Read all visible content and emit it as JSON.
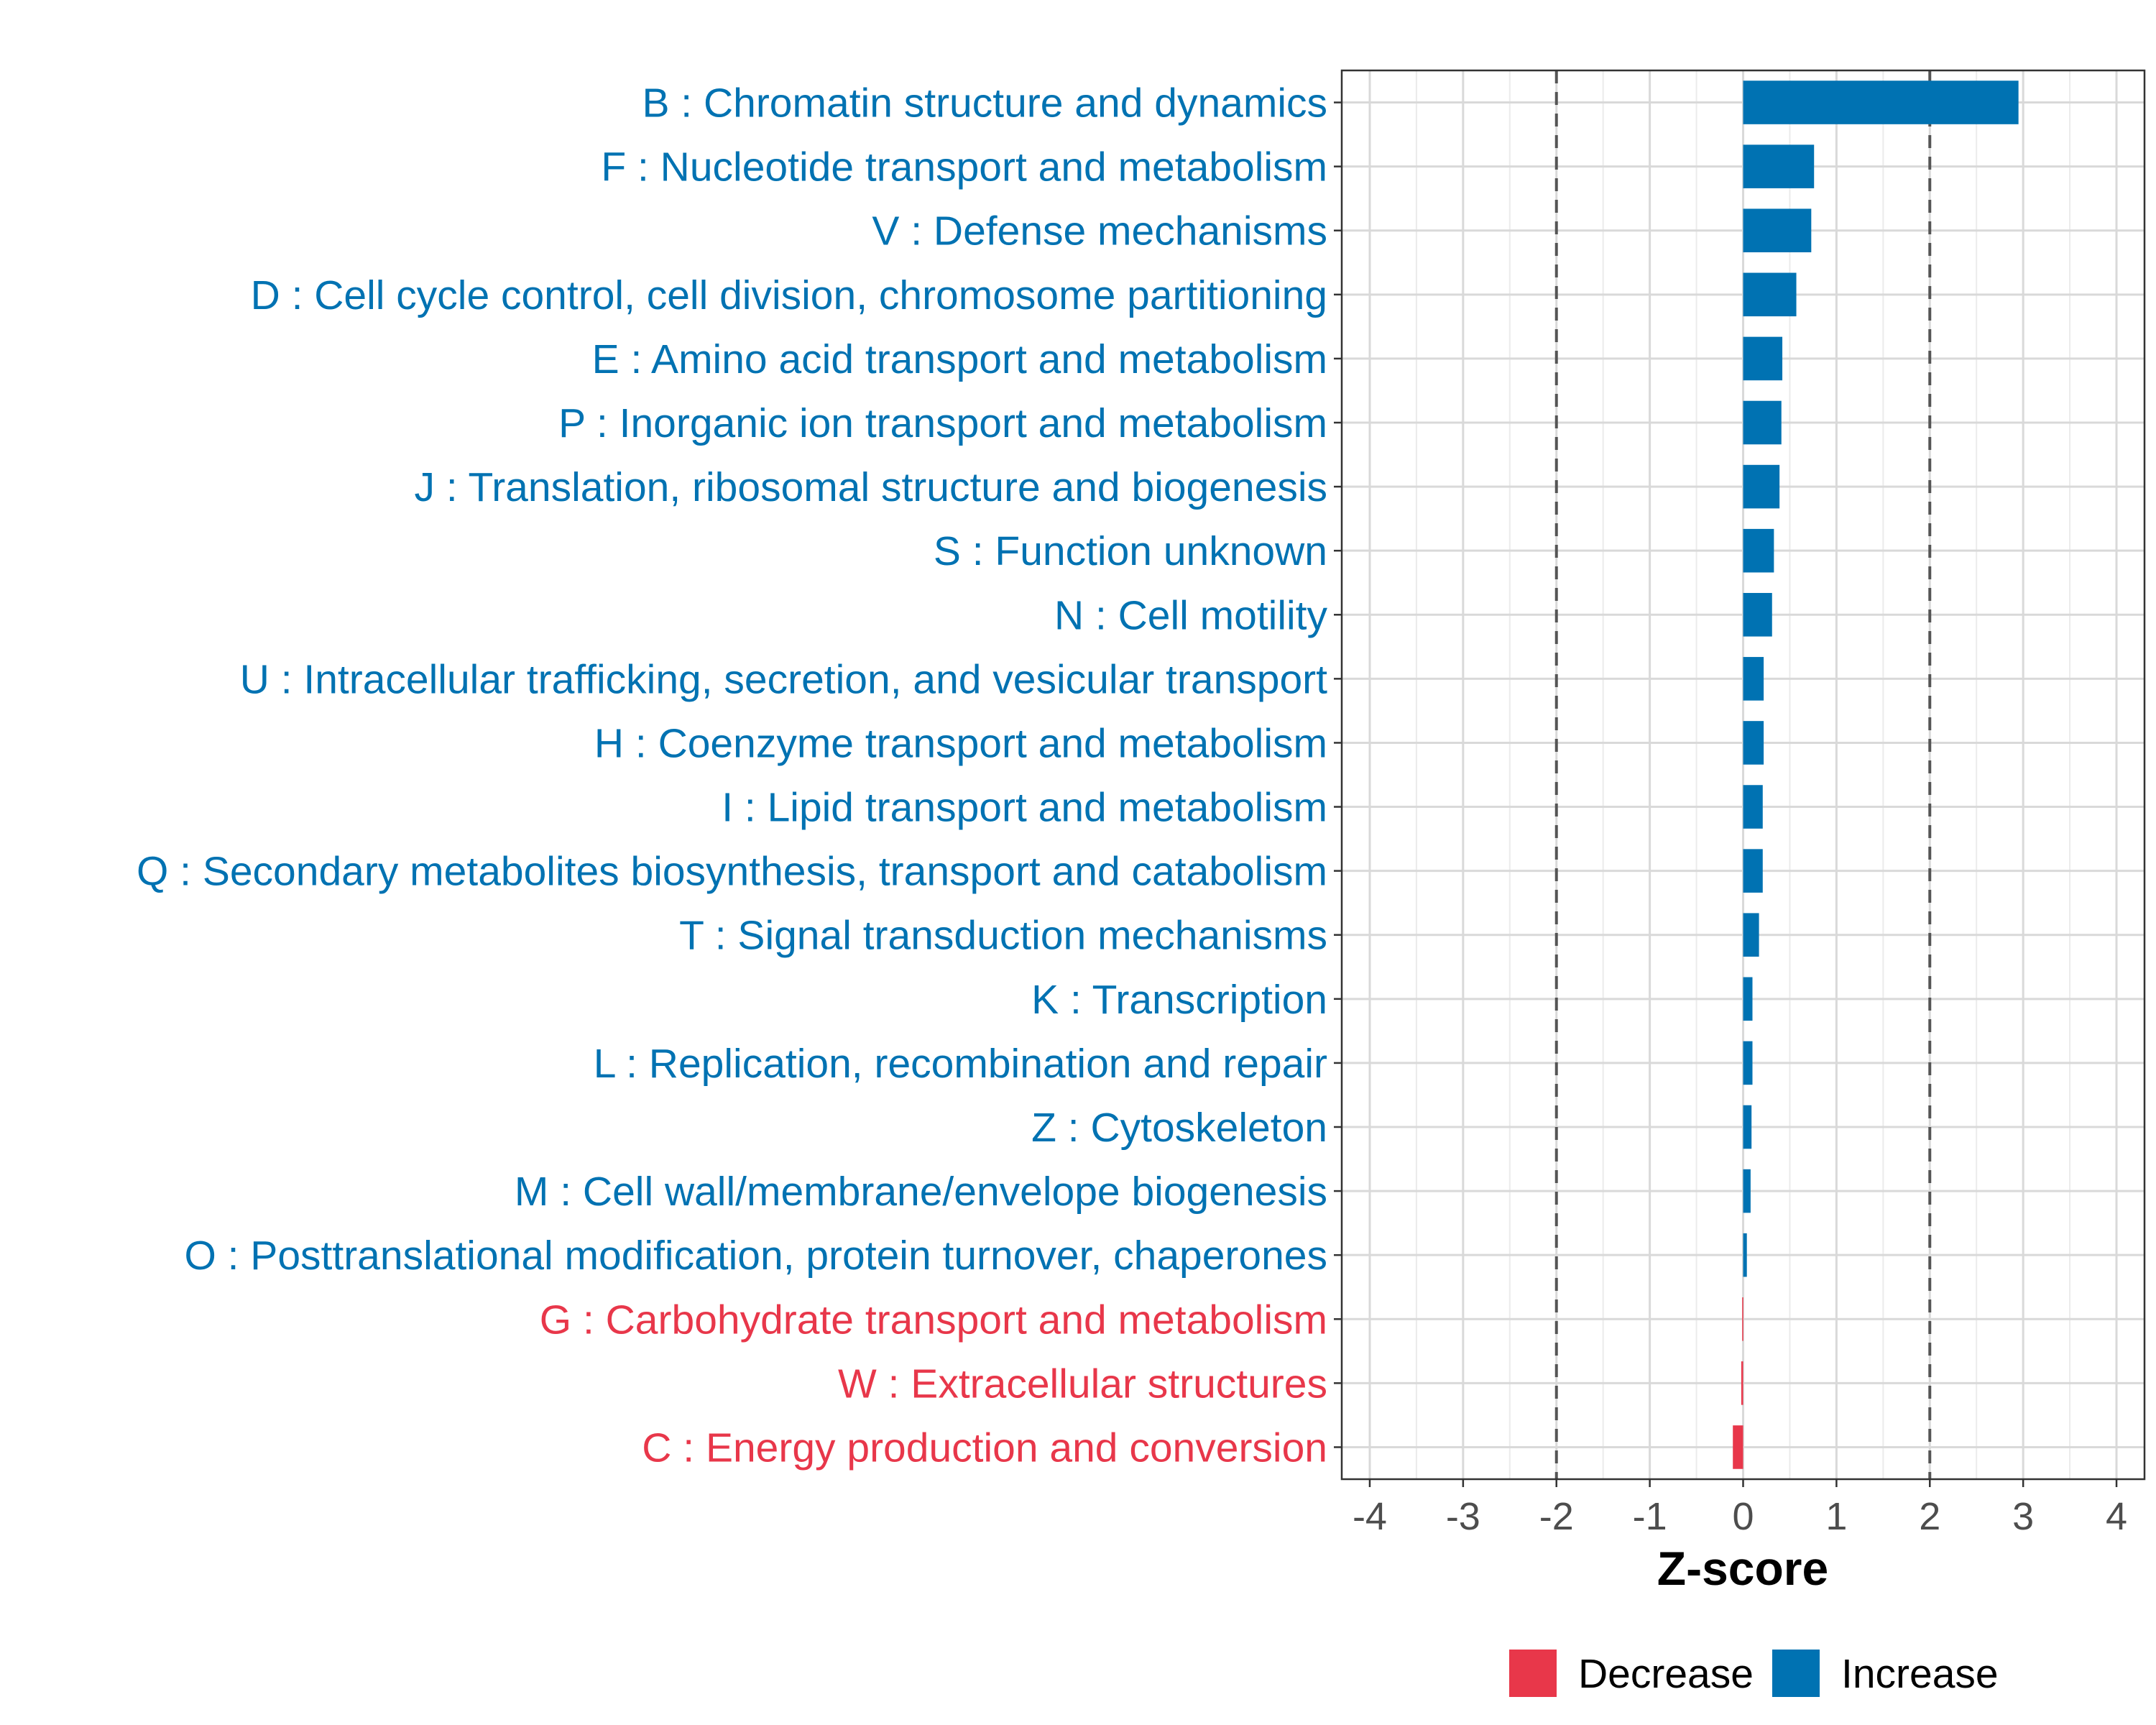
{
  "chart_data": {
    "type": "bar",
    "orientation": "horizontal",
    "xlabel": "Z-score",
    "xlim": [
      -4.3,
      4.3
    ],
    "xticks": [
      -4,
      -3,
      -2,
      -1,
      0,
      1,
      2,
      3,
      4
    ],
    "xtick_labels": [
      "-4",
      "-3",
      "-2",
      "-1",
      "0",
      "1",
      "2",
      "3",
      "4"
    ],
    "reference_lines": [
      -2,
      2
    ],
    "colors": {
      "Increase": "#0072B2",
      "Decrease": "#E8374A"
    },
    "legend": {
      "position": "bottom",
      "entries": [
        {
          "label": "Decrease",
          "color": "#E8374A"
        },
        {
          "label": "Increase",
          "color": "#0072B2"
        }
      ]
    },
    "categories": [
      "B : Chromatin structure and dynamics",
      "F : Nucleotide transport and metabolism",
      "V : Defense mechanisms",
      "D : Cell cycle control, cell division, chromosome partitioning",
      "E : Amino acid transport and metabolism",
      "P : Inorganic ion transport and metabolism",
      "J : Translation, ribosomal structure and biogenesis",
      "S : Function unknown",
      "N : Cell motility",
      "U : Intracellular trafficking, secretion, and vesicular transport",
      "H : Coenzyme transport and metabolism",
      "I : Lipid transport and metabolism",
      "Q : Secondary metabolites biosynthesis, transport and catabolism",
      "T : Signal transduction mechanisms",
      "K : Transcription",
      "L : Replication, recombination and repair",
      "Z : Cytoskeleton",
      "M : Cell wall/membrane/envelope biogenesis",
      "O : Posttranslational modification, protein turnover, chaperones",
      "G : Carbohydrate transport and metabolism",
      "W : Extracellular structures",
      "C : Energy production and conversion"
    ],
    "values": [
      2.95,
      0.76,
      0.73,
      0.57,
      0.42,
      0.41,
      0.39,
      0.33,
      0.31,
      0.22,
      0.22,
      0.21,
      0.21,
      0.17,
      0.1,
      0.1,
      0.09,
      0.08,
      0.04,
      -0.01,
      -0.02,
      -0.11
    ],
    "groups": [
      "Increase",
      "Increase",
      "Increase",
      "Increase",
      "Increase",
      "Increase",
      "Increase",
      "Increase",
      "Increase",
      "Increase",
      "Increase",
      "Increase",
      "Increase",
      "Increase",
      "Increase",
      "Increase",
      "Increase",
      "Increase",
      "Increase",
      "Decrease",
      "Decrease",
      "Decrease"
    ]
  }
}
